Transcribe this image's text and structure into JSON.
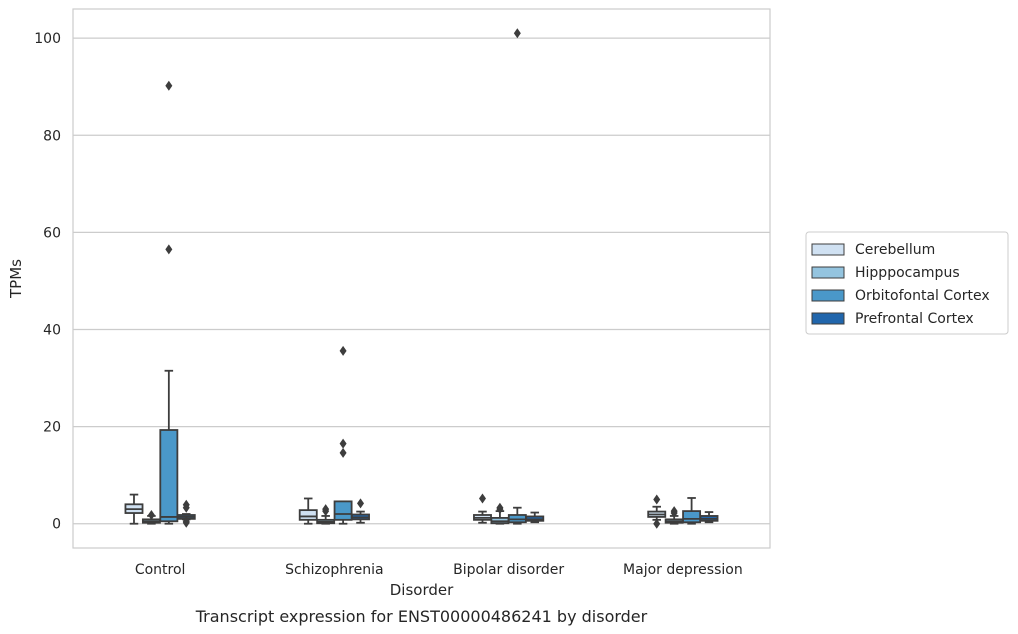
{
  "chart_data": {
    "type": "box",
    "caption": "Transcript expression for ENST00000486241 by disorder",
    "xlabel": "Disorder",
    "ylabel": "TPMs",
    "ylim": [
      -5,
      106
    ],
    "yticks": [
      0,
      20,
      40,
      60,
      80,
      100
    ],
    "grid": true,
    "legend_position": "right",
    "categories": [
      "Control",
      "Schizophrenia",
      "Bipolar disorder",
      "Major depression"
    ],
    "series": [
      {
        "name": "Cerebellum",
        "color": "#d0e1f2",
        "boxes": [
          {
            "whisker_low": 0.0,
            "q1": 2.2,
            "median": 3.0,
            "q3": 4.0,
            "whisker_high": 6.0,
            "outliers": []
          },
          {
            "whisker_low": 0.0,
            "q1": 0.8,
            "median": 1.5,
            "q3": 2.8,
            "whisker_high": 5.2,
            "outliers": []
          },
          {
            "whisker_low": 0.2,
            "q1": 0.8,
            "median": 1.2,
            "q3": 1.8,
            "whisker_high": 2.5,
            "outliers": [
              5.2
            ]
          },
          {
            "whisker_low": 0.8,
            "q1": 1.4,
            "median": 1.9,
            "q3": 2.5,
            "whisker_high": 3.5,
            "outliers": [
              5.0,
              0.0
            ]
          }
        ]
      },
      {
        "name": "Hipppocampus",
        "color": "#94c4df",
        "boxes": [
          {
            "whisker_low": 0.0,
            "q1": 0.2,
            "median": 0.5,
            "q3": 0.9,
            "whisker_high": 1.6,
            "outliers": [
              1.8
            ]
          },
          {
            "whisker_low": 0.0,
            "q1": 0.1,
            "median": 0.4,
            "q3": 0.8,
            "whisker_high": 1.6,
            "outliers": [
              2.6,
              3.0
            ]
          },
          {
            "whisker_low": 0.0,
            "q1": 0.1,
            "median": 0.5,
            "q3": 1.2,
            "whisker_high": 2.6,
            "outliers": [
              3.3,
              3.0
            ]
          },
          {
            "whisker_low": 0.0,
            "q1": 0.2,
            "median": 0.5,
            "q3": 0.9,
            "whisker_high": 1.6,
            "outliers": [
              2.6,
              2.2
            ]
          }
        ]
      },
      {
        "name": "Orbitofontal Cortex",
        "color": "#4a98c9",
        "boxes": [
          {
            "whisker_low": 0.0,
            "q1": 0.5,
            "median": 1.4,
            "q3": 19.3,
            "whisker_high": 31.5,
            "outliers": [
              90.2,
              56.5
            ]
          },
          {
            "whisker_low": 0.0,
            "q1": 0.8,
            "median": 2.0,
            "q3": 4.6,
            "whisker_high": 4.6,
            "outliers": [
              35.6,
              16.5,
              14.6
            ]
          },
          {
            "whisker_low": 0.0,
            "q1": 0.3,
            "median": 0.9,
            "q3": 1.8,
            "whisker_high": 3.3,
            "outliers": [
              101.0
            ]
          },
          {
            "whisker_low": 0.0,
            "q1": 0.3,
            "median": 1.0,
            "q3": 2.6,
            "whisker_high": 5.3,
            "outliers": []
          }
        ]
      },
      {
        "name": "Prefrontal Cortex",
        "color": "#2166ac",
        "boxes": [
          {
            "whisker_low": 0.9,
            "q1": 1.0,
            "median": 1.4,
            "q3": 1.8,
            "whisker_high": 2.0,
            "outliers": [
              3.9,
              3.3,
              0.5,
              0.2
            ]
          },
          {
            "whisker_low": 0.2,
            "q1": 0.9,
            "median": 1.3,
            "q3": 1.9,
            "whisker_high": 2.5,
            "outliers": [
              4.2
            ]
          },
          {
            "whisker_low": 0.3,
            "q1": 0.6,
            "median": 0.9,
            "q3": 1.5,
            "whisker_high": 2.3,
            "outliers": []
          },
          {
            "whisker_low": 0.3,
            "q1": 0.6,
            "median": 1.0,
            "q3": 1.6,
            "whisker_high": 2.4,
            "outliers": []
          }
        ]
      }
    ]
  }
}
